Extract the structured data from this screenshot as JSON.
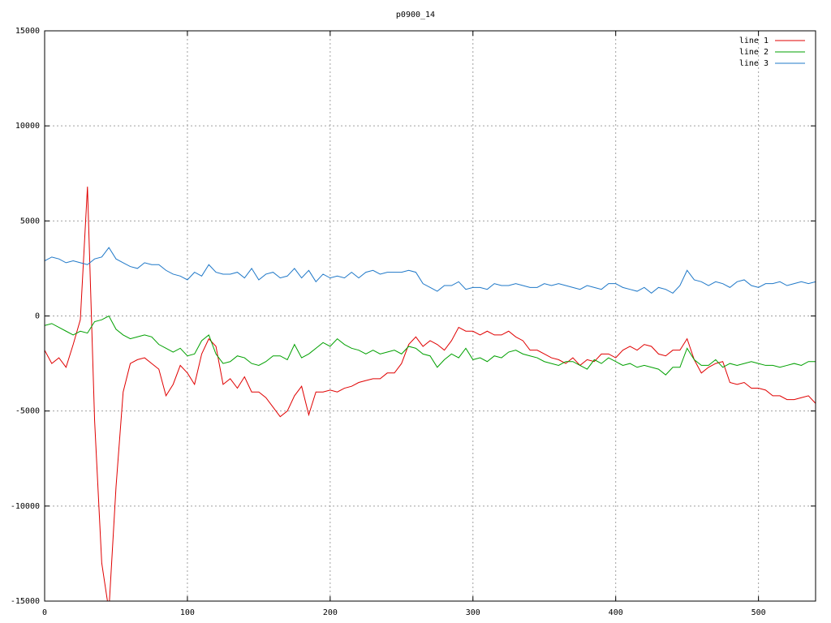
{
  "chart_data": {
    "type": "line",
    "title": "p0900_14",
    "x": [
      0,
      5,
      10,
      15,
      20,
      25,
      30,
      35,
      40,
      45,
      50,
      55,
      60,
      65,
      70,
      75,
      80,
      85,
      90,
      95,
      100,
      105,
      110,
      115,
      120,
      125,
      130,
      135,
      140,
      145,
      150,
      155,
      160,
      165,
      170,
      175,
      180,
      185,
      190,
      195,
      200,
      205,
      210,
      215,
      220,
      225,
      230,
      235,
      240,
      245,
      250,
      255,
      260,
      265,
      270,
      275,
      280,
      285,
      290,
      295,
      300,
      305,
      310,
      315,
      320,
      325,
      330,
      335,
      340,
      345,
      350,
      355,
      360,
      365,
      370,
      375,
      380,
      385,
      390,
      395,
      400,
      405,
      410,
      415,
      420,
      425,
      430,
      435,
      440,
      445,
      450,
      455,
      460,
      465,
      470,
      475,
      480,
      485,
      490,
      495,
      500,
      505,
      510,
      515,
      520,
      525,
      530,
      535,
      540
    ],
    "series": [
      {
        "name": "line 1",
        "color": "#e00000",
        "values": [
          -1800,
          -2500,
          -2200,
          -2700,
          -1500,
          -200,
          6800,
          -5500,
          -13000,
          -15500,
          -9000,
          -4000,
          -2500,
          -2300,
          -2200,
          -2500,
          -2800,
          -4200,
          -3600,
          -2600,
          -3000,
          -3600,
          -2000,
          -1200,
          -1600,
          -3600,
          -3300,
          -3800,
          -3200,
          -4000,
          -4000,
          -4300,
          -4800,
          -5300,
          -5000,
          -4200,
          -3700,
          -5200,
          -4000,
          -4000,
          -3900,
          -4000,
          -3800,
          -3700,
          -3500,
          -3400,
          -3300,
          -3300,
          -3000,
          -3000,
          -2500,
          -1500,
          -1100,
          -1600,
          -1300,
          -1500,
          -1800,
          -1300,
          -600,
          -800,
          -800,
          -1000,
          -800,
          -1000,
          -1000,
          -800,
          -1100,
          -1300,
          -1800,
          -1800,
          -2000,
          -2200,
          -2300,
          -2500,
          -2200,
          -2600,
          -2300,
          -2400,
          -2000,
          -2000,
          -2200,
          -1800,
          -1600,
          -1800,
          -1500,
          -1600,
          -2000,
          -2100,
          -1800,
          -1800,
          -1200,
          -2300,
          -3000,
          -2700,
          -2500,
          -2400,
          -3500,
          -3600,
          -3500,
          -3800,
          -3800,
          -3900,
          -4200,
          -4200,
          -4400,
          -4400,
          -4300,
          -4200,
          -4600
        ]
      },
      {
        "name": "line 2",
        "color": "#00a000",
        "values": [
          -500,
          -400,
          -600,
          -800,
          -1000,
          -800,
          -900,
          -300,
          -200,
          0,
          -700,
          -1000,
          -1200,
          -1100,
          -1000,
          -1100,
          -1500,
          -1700,
          -1900,
          -1700,
          -2100,
          -2000,
          -1300,
          -1000,
          -2000,
          -2500,
          -2400,
          -2100,
          -2200,
          -2500,
          -2600,
          -2400,
          -2100,
          -2100,
          -2300,
          -1500,
          -2200,
          -2000,
          -1700,
          -1400,
          -1600,
          -1200,
          -1500,
          -1700,
          -1800,
          -2000,
          -1800,
          -2000,
          -1900,
          -1800,
          -2000,
          -1600,
          -1700,
          -2000,
          -2100,
          -2700,
          -2300,
          -2000,
          -2200,
          -1700,
          -2300,
          -2200,
          -2400,
          -2100,
          -2200,
          -1900,
          -1800,
          -2000,
          -2100,
          -2200,
          -2400,
          -2500,
          -2600,
          -2400,
          -2400,
          -2600,
          -2800,
          -2300,
          -2500,
          -2200,
          -2400,
          -2600,
          -2500,
          -2700,
          -2600,
          -2700,
          -2800,
          -3100,
          -2700,
          -2700,
          -1700,
          -2300,
          -2600,
          -2600,
          -2300,
          -2700,
          -2500,
          -2600,
          -2500,
          -2400,
          -2500,
          -2600,
          -2600,
          -2700,
          -2600,
          -2500,
          -2600,
          -2400,
          -2400
        ]
      },
      {
        "name": "line 3",
        "color": "#1f78c8",
        "values": [
          2900,
          3100,
          3000,
          2800,
          2900,
          2800,
          2700,
          3000,
          3100,
          3600,
          3000,
          2800,
          2600,
          2500,
          2800,
          2700,
          2700,
          2400,
          2200,
          2100,
          1900,
          2300,
          2100,
          2700,
          2300,
          2200,
          2200,
          2300,
          2000,
          2500,
          1900,
          2200,
          2300,
          2000,
          2100,
          2500,
          2000,
          2400,
          1800,
          2200,
          2000,
          2100,
          2000,
          2300,
          2000,
          2300,
          2400,
          2200,
          2300,
          2300,
          2300,
          2400,
          2300,
          1700,
          1500,
          1300,
          1600,
          1600,
          1800,
          1400,
          1500,
          1500,
          1400,
          1700,
          1600,
          1600,
          1700,
          1600,
          1500,
          1500,
          1700,
          1600,
          1700,
          1600,
          1500,
          1400,
          1600,
          1500,
          1400,
          1700,
          1700,
          1500,
          1400,
          1300,
          1500,
          1200,
          1500,
          1400,
          1200,
          1600,
          2400,
          1900,
          1800,
          1600,
          1800,
          1700,
          1500,
          1800,
          1900,
          1600,
          1500,
          1700,
          1700,
          1800,
          1600,
          1700,
          1800,
          1700,
          1800
        ]
      }
    ],
    "xlim": [
      0,
      540
    ],
    "xticks": [
      0,
      100,
      200,
      300,
      400,
      500
    ],
    "ylim": [
      -15000,
      15000
    ],
    "yticks": [
      -15000,
      -10000,
      -5000,
      0,
      5000,
      10000,
      15000
    ],
    "grid": true,
    "legend": "top-right"
  }
}
